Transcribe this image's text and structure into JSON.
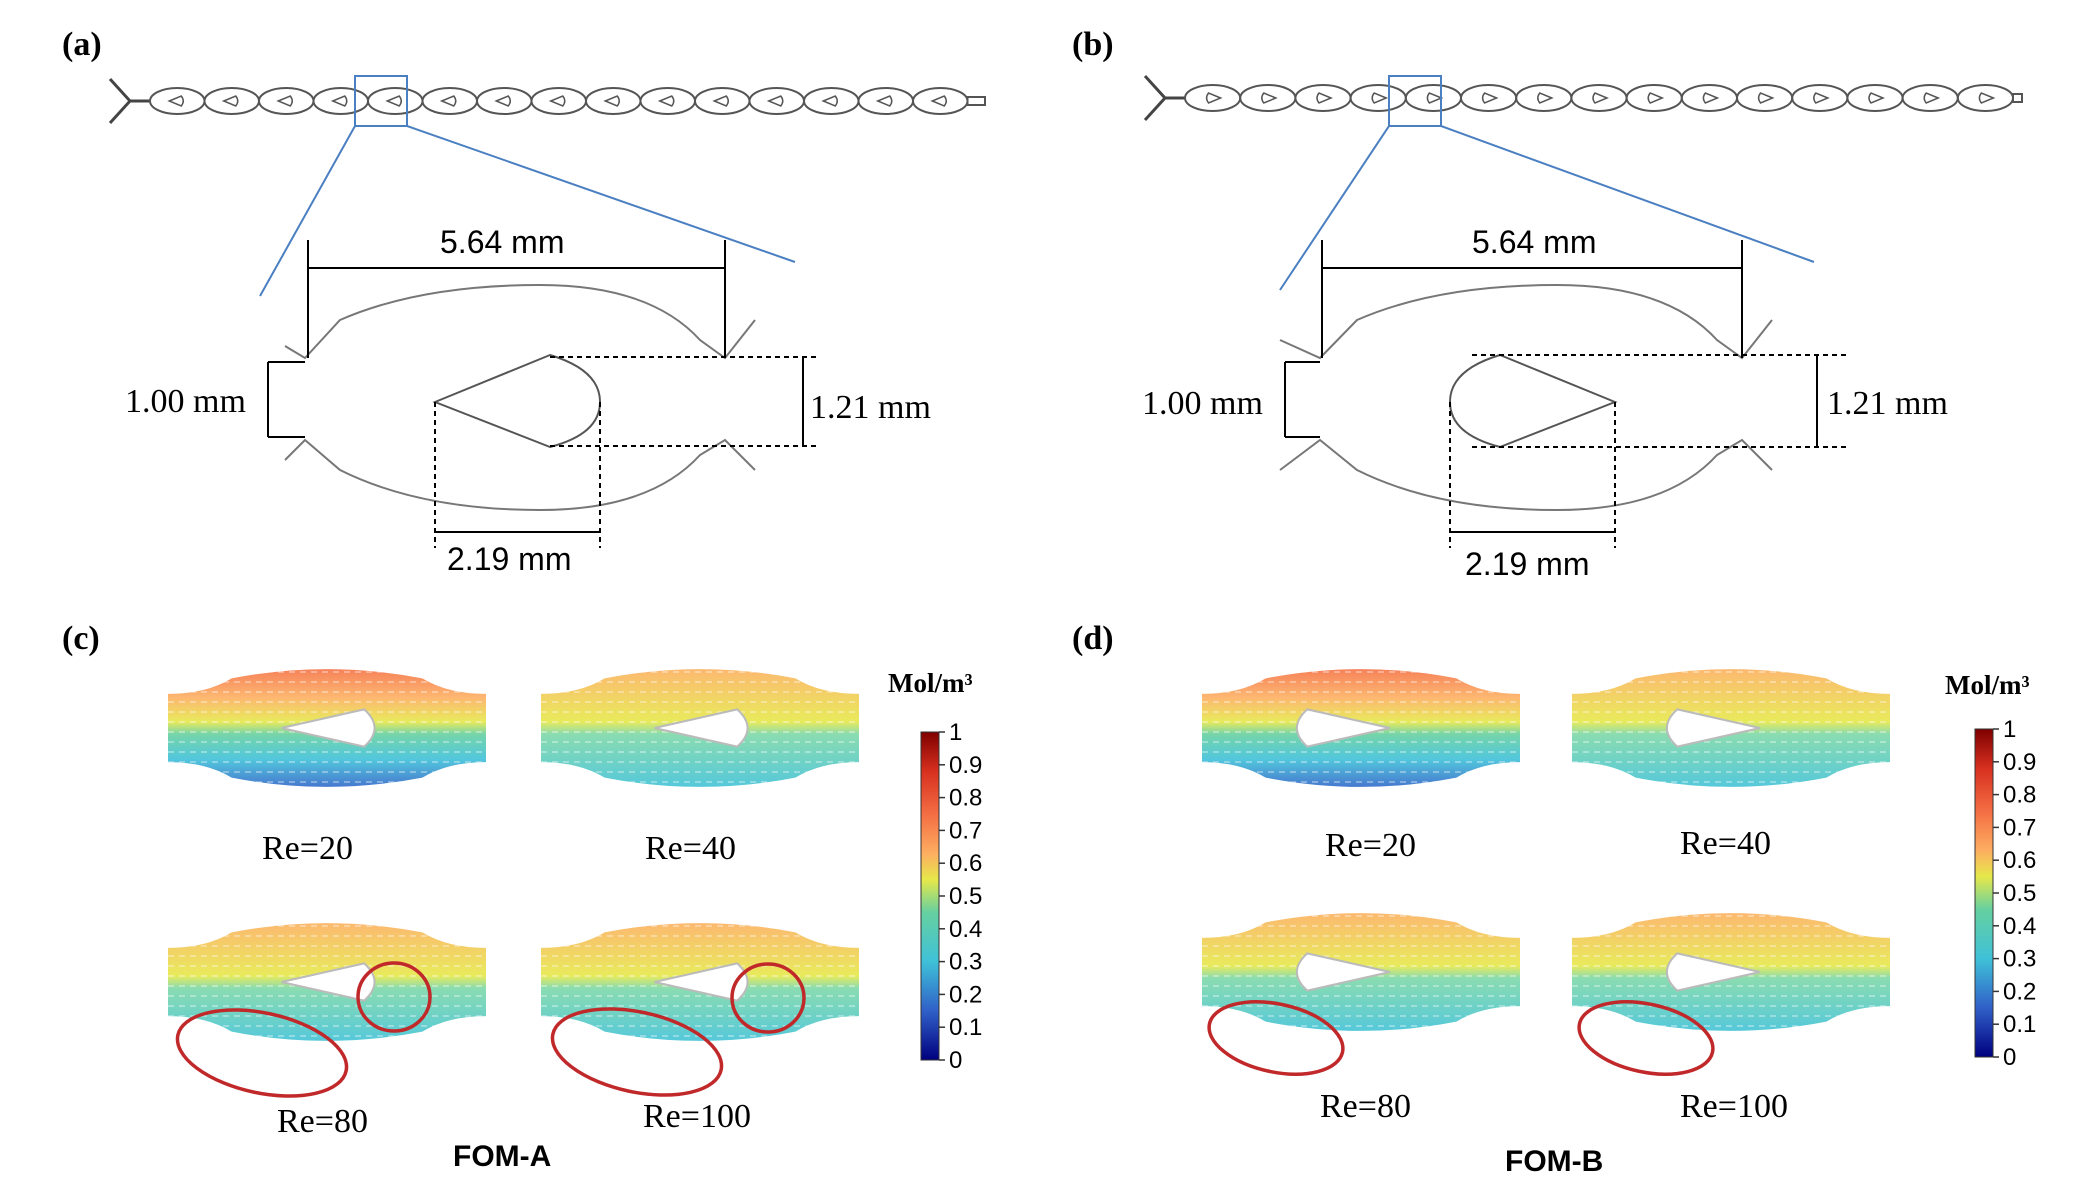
{
  "panels": {
    "a": {
      "label": "(a)"
    },
    "b": {
      "label": "(b)"
    },
    "c": {
      "label": "(c)"
    },
    "d": {
      "label": "(d)"
    }
  },
  "dimensions": {
    "length": "5.64 mm",
    "neck": "1.00 mm",
    "obstacle_height": "1.21 mm",
    "obstacle_width": "2.19 mm"
  },
  "simulations": {
    "re_labels": [
      "Re=20",
      "Re=40",
      "Re=80",
      "Re=100"
    ],
    "fom_a": "FOM-A",
    "fom_b": "FOM-B"
  },
  "colorbar": {
    "unit": "Mol/m³",
    "ticks": [
      "1",
      "0.9",
      "0.8",
      "0.7",
      "0.6",
      "0.5",
      "0.4",
      "0.3",
      "0.2",
      "0.1",
      "0"
    ],
    "colors": [
      "#7f0000",
      "#d7301f",
      "#f46d43",
      "#fdae61",
      "#fee08b",
      "#d9ef8b",
      "#66c2a5",
      "#3fc1d8",
      "#3288bd",
      "#2050c0",
      "#00007f"
    ]
  }
}
